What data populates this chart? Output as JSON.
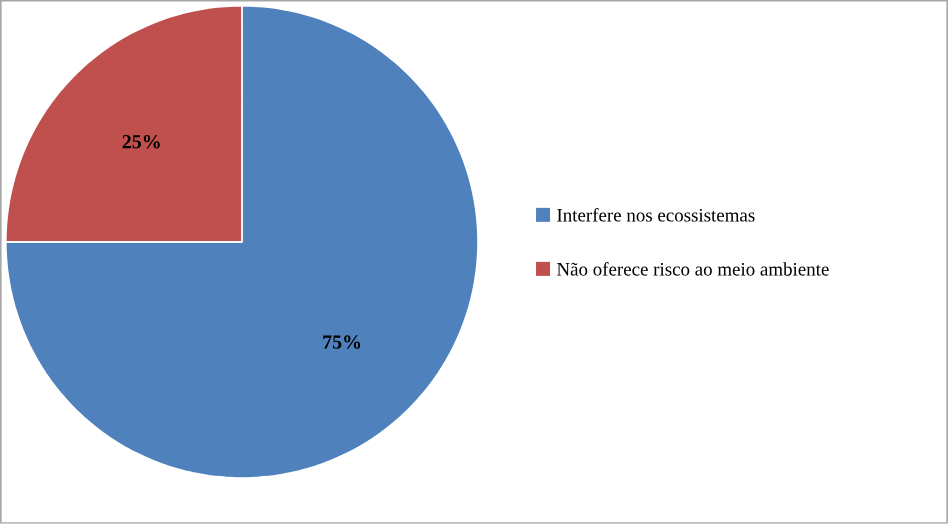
{
  "chart_data": {
    "type": "pie",
    "categories": [
      "Interfere nos ecossistemas",
      "Não oferece risco ao meio ambiente"
    ],
    "values": [
      75,
      25
    ],
    "colors": [
      "#4f81bd",
      "#c0504d"
    ],
    "value_labels": [
      "75%",
      "25%"
    ],
    "legend": "right"
  }
}
